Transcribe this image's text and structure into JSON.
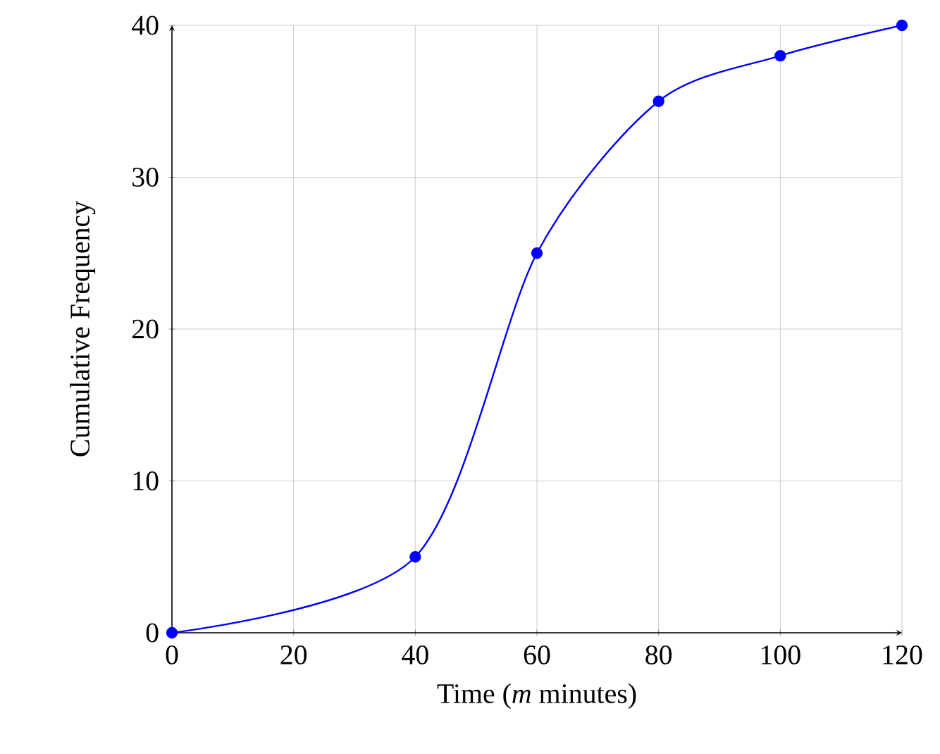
{
  "chart_data": {
    "type": "line",
    "xlabel": "Time (*m* minutes)",
    "ylabel": "Cumulative Frequency",
    "x": [
      0,
      40,
      60,
      80,
      100,
      120
    ],
    "series": [
      {
        "color": "#0000ff",
        "values": [
          0,
          5,
          25,
          35,
          38,
          40
        ]
      }
    ],
    "xlim": [
      0,
      120
    ],
    "ylim": [
      0,
      40
    ],
    "xticks": [
      0,
      20,
      40,
      60,
      80,
      100,
      120
    ],
    "yticks": [
      0,
      10,
      20,
      30,
      40
    ],
    "grid": true,
    "marker": "circle",
    "line_style": "solid"
  }
}
